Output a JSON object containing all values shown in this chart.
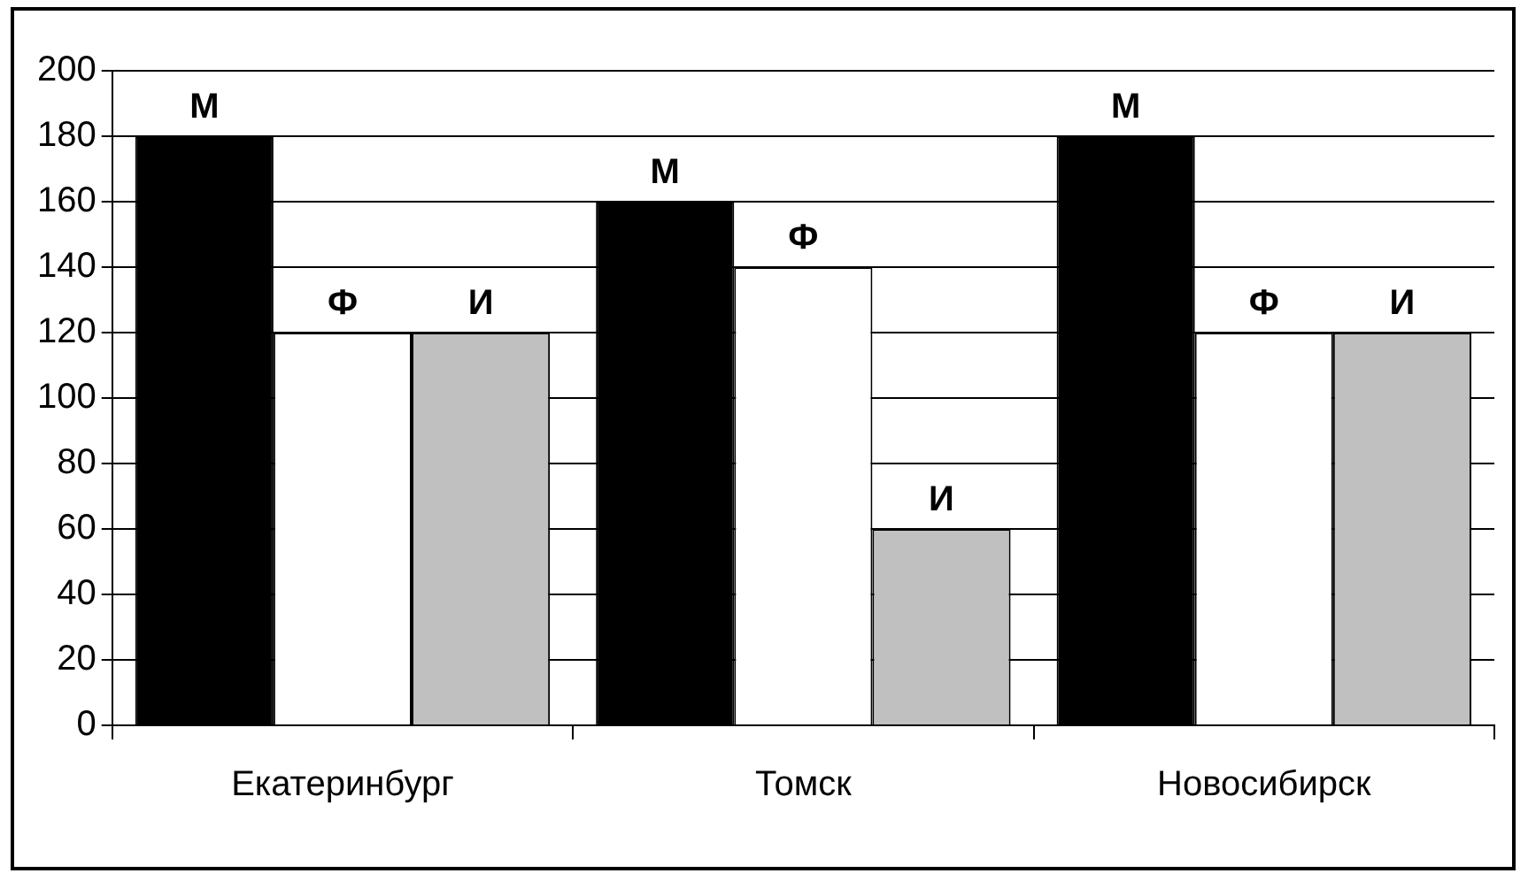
{
  "chart_data": {
    "type": "bar",
    "categories": [
      "Екатеринбург",
      "Томск",
      "Новосибирск"
    ],
    "series": [
      {
        "name": "М",
        "color": "#000000",
        "values": [
          180,
          160,
          180
        ]
      },
      {
        "name": "Ф",
        "color": "#ffffff",
        "values": [
          120,
          140,
          120
        ]
      },
      {
        "name": "И",
        "color": "#c0c0c0",
        "values": [
          120,
          60,
          120
        ]
      }
    ],
    "ylim": [
      0,
      200
    ],
    "yticks": [
      0,
      20,
      40,
      60,
      80,
      100,
      120,
      140,
      160,
      180,
      200
    ],
    "grid": "y",
    "legend": false
  }
}
